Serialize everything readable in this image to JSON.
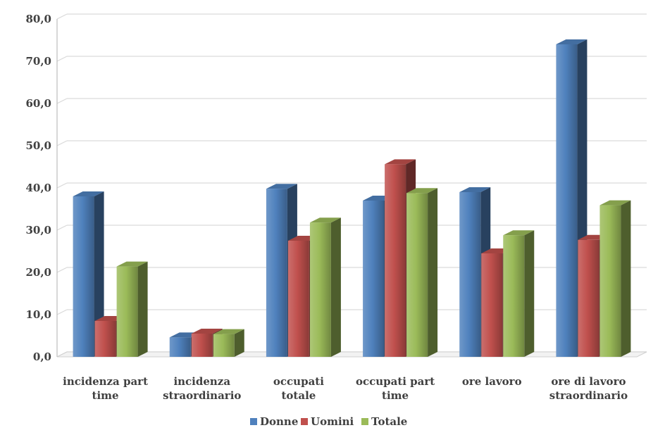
{
  "chart_data": {
    "type": "bar",
    "title": "",
    "xlabel": "",
    "ylabel": "",
    "ylim": [
      0,
      80
    ],
    "ytick_step": 10,
    "ytick_labels": [
      "0,0",
      "10,0",
      "20,0",
      "30,0",
      "40,0",
      "50,0",
      "60,0",
      "70,0",
      "80,0"
    ],
    "grid": true,
    "three_d": true,
    "legend_position": "bottom",
    "categories": [
      [
        "incidenza part",
        "time"
      ],
      [
        "incidenza",
        "straordinario"
      ],
      [
        "occupati",
        "totale"
      ],
      [
        "occupati part",
        "time"
      ],
      [
        "ore lavoro"
      ],
      [
        "ore di lavoro",
        "straordinario"
      ]
    ],
    "series": [
      {
        "name": "Donne",
        "color": "#4F81BD",
        "values": [
          38.0,
          4.6,
          39.8,
          37.0,
          39.0,
          74.0
        ]
      },
      {
        "name": "Uomini",
        "color": "#C0504D",
        "values": [
          8.5,
          5.5,
          27.5,
          45.6,
          24.5,
          27.7
        ]
      },
      {
        "name": "Totale",
        "color": "#9BBB59",
        "values": [
          21.4,
          5.4,
          31.8,
          38.8,
          28.8,
          35.9
        ]
      }
    ]
  }
}
